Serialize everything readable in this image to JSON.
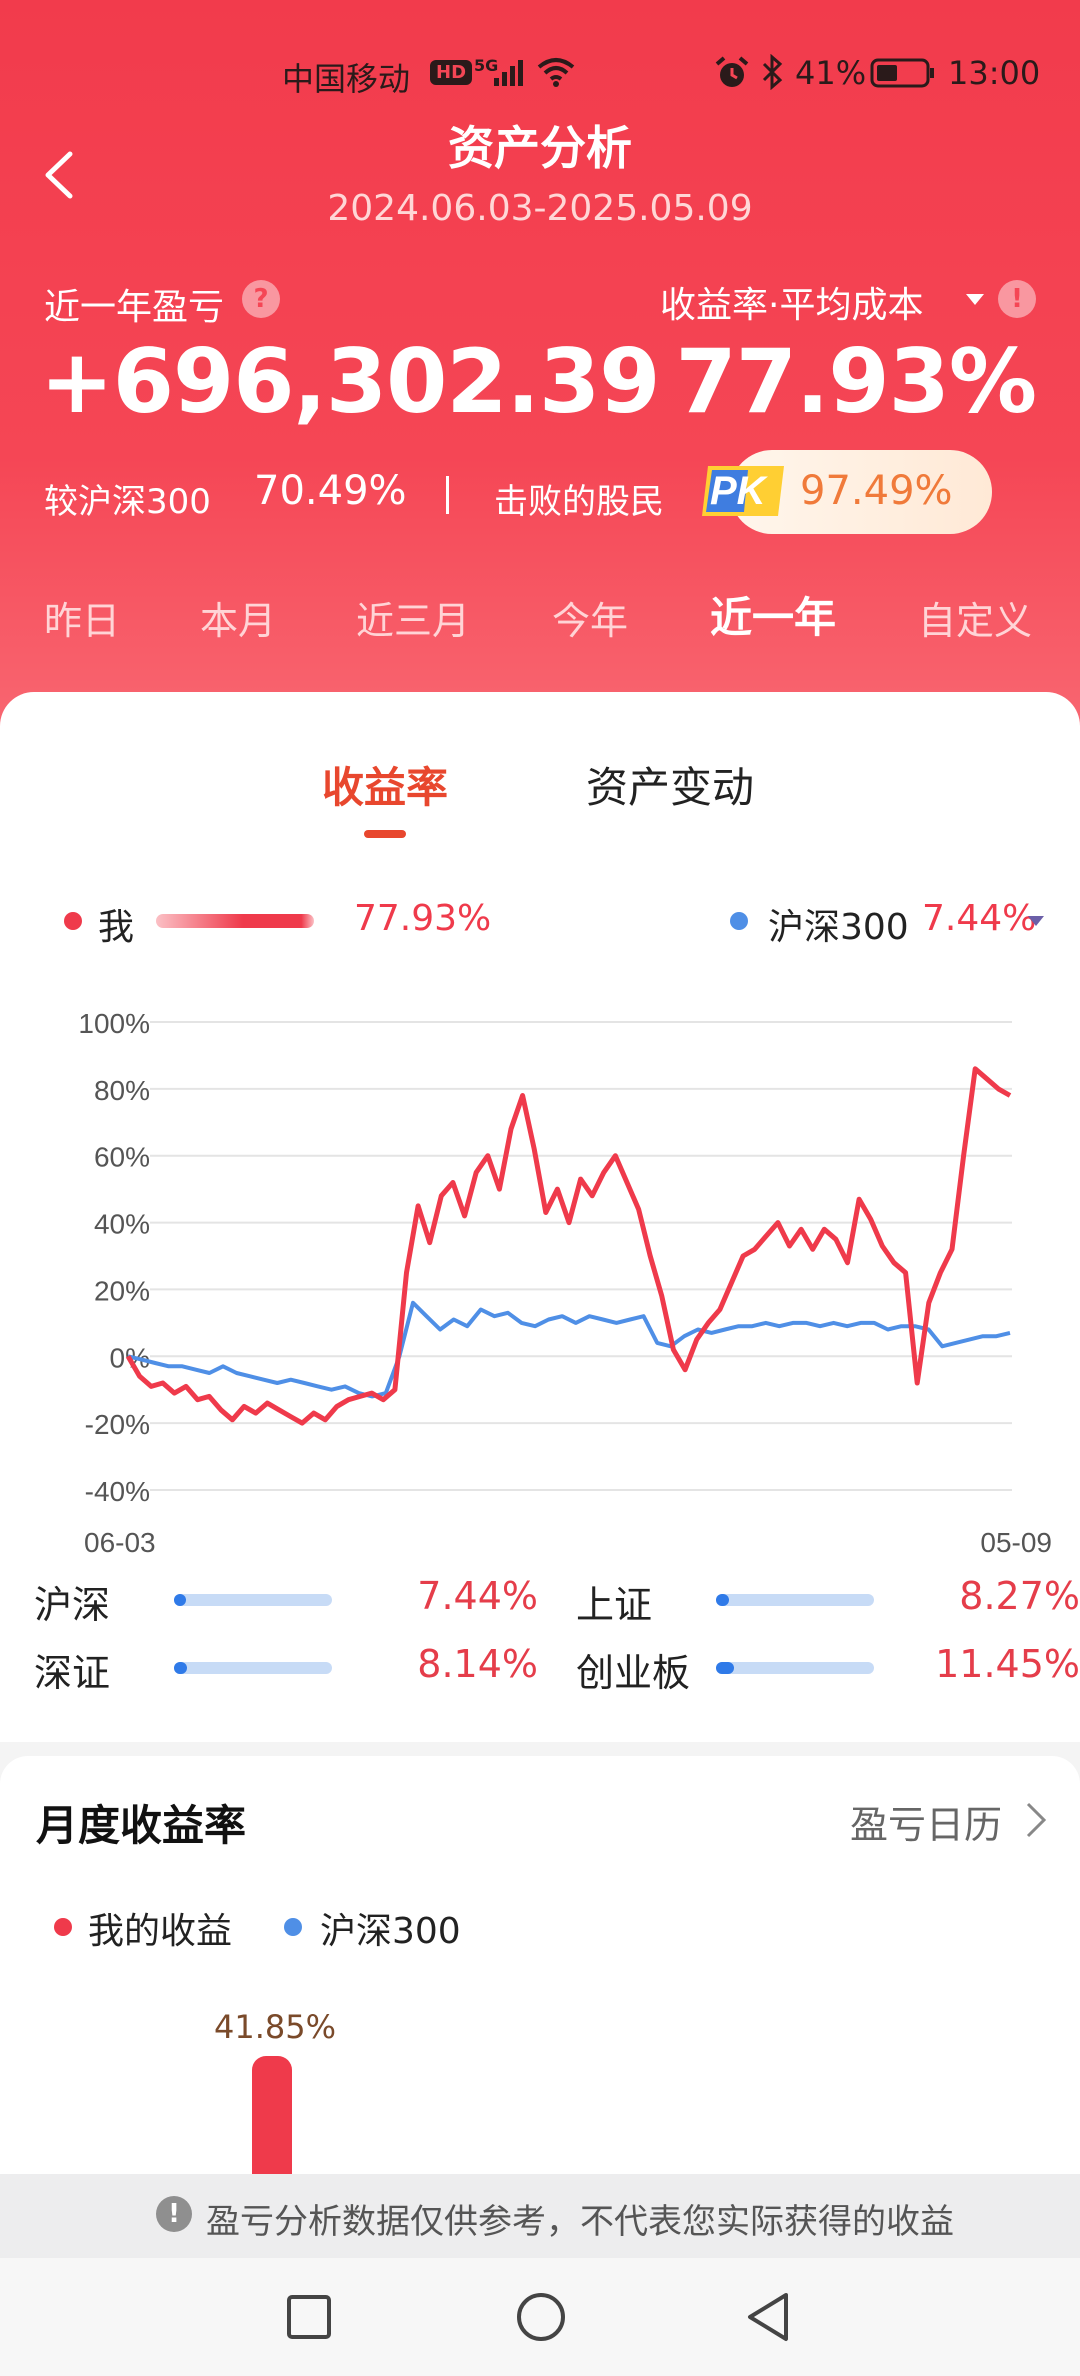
{
  "status_bar": {
    "carrier": "中国移动",
    "hd_badge": "HD",
    "network_badge": "5G",
    "battery_percent": "41%",
    "time": "13:00"
  },
  "header": {
    "title": "资产分析",
    "date_range": "2024.06.03-2025.05.09",
    "pnl_label": "近一年盈亏",
    "pnl_help": "?",
    "pnl_value": "+696,302.39",
    "rate_label": "收益率·平均成本",
    "rate_warn": "!",
    "rate_value": "77.93%",
    "benchmark_label": "较沪深300",
    "benchmark_value": "70.49%",
    "divider": "|",
    "beat_label": "击败的股民",
    "pk_badge": "PK",
    "beat_value": "97.49%"
  },
  "period_tabs": [
    {
      "label": "昨日",
      "active": false
    },
    {
      "label": "本月",
      "active": false
    },
    {
      "label": "近三月",
      "active": false
    },
    {
      "label": "今年",
      "active": false
    },
    {
      "label": "近一年",
      "active": true
    },
    {
      "label": "自定义",
      "active": false
    }
  ],
  "chart_tabs": {
    "rate": "收益率",
    "asset": "资产变动"
  },
  "legend": {
    "me_label": "我",
    "me_value": "77.93%",
    "hs_label": "沪深300",
    "hs_value": "7.44%"
  },
  "colors": {
    "accent": "#f54655",
    "me_line": "#ef3a4b",
    "hs_line": "#4f8fe6"
  },
  "chart_data": {
    "type": "line",
    "y_ticks": [
      "100%",
      "80%",
      "60%",
      "40%",
      "20%",
      "0%",
      "-20%",
      "-40%"
    ],
    "ylim": [
      -40,
      100
    ],
    "x_ticks": [
      "06-03",
      "05-09"
    ],
    "x_range": [
      "2024-06-03",
      "2025-05-09"
    ],
    "series": [
      {
        "name": "我",
        "color": "#ef3a4b",
        "values": [
          0,
          -6,
          -9,
          -8,
          -11,
          -9,
          -13,
          -12,
          -16,
          -19,
          -15,
          -17,
          -14,
          -16,
          -18,
          -20,
          -17,
          -19,
          -15,
          -13,
          -12,
          -11,
          -13,
          -10,
          25,
          45,
          34,
          48,
          52,
          42,
          55,
          60,
          50,
          68,
          78,
          62,
          43,
          50,
          40,
          53,
          48,
          55,
          60,
          52,
          44,
          30,
          18,
          2,
          -4,
          5,
          10,
          14,
          22,
          30,
          32,
          36,
          40,
          33,
          38,
          32,
          38,
          35,
          28,
          47,
          41,
          33,
          28,
          25,
          -8,
          16,
          25,
          32,
          60,
          86,
          83,
          80,
          78
        ]
      },
      {
        "name": "沪深300",
        "color": "#4f8fe6",
        "values": [
          0,
          -1,
          -2,
          -3,
          -3,
          -4,
          -5,
          -3,
          -5,
          -6,
          -7,
          -8,
          -7,
          -8,
          -9,
          -10,
          -9,
          -11,
          -12,
          -11,
          0,
          16,
          12,
          8,
          11,
          9,
          14,
          12,
          13,
          10,
          9,
          11,
          12,
          10,
          12,
          11,
          10,
          11,
          12,
          4,
          3,
          6,
          8,
          7,
          8,
          9,
          9,
          10,
          9,
          10,
          10,
          9,
          10,
          9,
          10,
          10,
          8,
          9,
          9,
          8,
          3,
          4,
          5,
          6,
          6,
          7
        ]
      }
    ]
  },
  "indices": [
    {
      "name": "沪深",
      "value": "7.44%",
      "level": 0.0744
    },
    {
      "name": "上证",
      "value": "8.27%",
      "level": 0.0827
    },
    {
      "name": "深证",
      "value": "8.14%",
      "level": 0.0814
    },
    {
      "name": "创业板",
      "value": "11.45%",
      "level": 0.1145
    }
  ],
  "monthly": {
    "title": "月度收益率",
    "calendar_link": "盈亏日历",
    "me_label": "我的收益",
    "hs_label": "沪深300",
    "bar_label": "41.85%"
  },
  "disclaimer": {
    "icon": "!",
    "text": "盈亏分析数据仅供参考，不代表您实际获得的收益"
  }
}
